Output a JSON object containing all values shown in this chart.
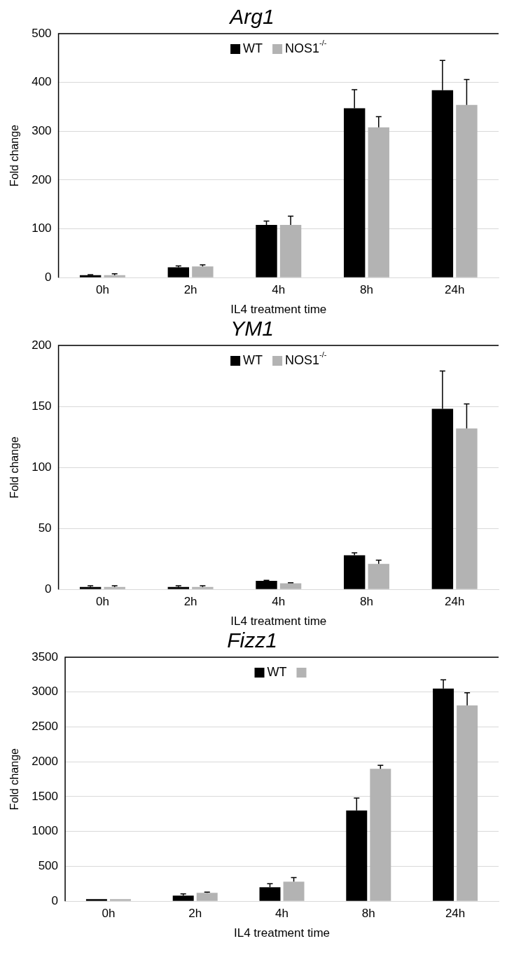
{
  "chart_data": [
    {
      "type": "bar",
      "title": "Arg1",
      "xlabel": "IL4 treatment time",
      "ylabel": "Fold change",
      "categories": [
        "0h",
        "2h",
        "4h",
        "8h",
        "24h"
      ],
      "ylim": [
        0,
        500
      ],
      "yticks": [
        0,
        100,
        200,
        300,
        400,
        500
      ],
      "grid": "y",
      "legend": "top",
      "series": [
        {
          "name": "WT",
          "color": "#000000",
          "values": [
            5,
            21,
            108,
            347,
            384
          ],
          "errors": [
            [
              5,
              6
            ],
            [
              21,
              24
            ],
            [
              108,
              116
            ],
            [
              347,
              385
            ],
            [
              384,
              445
            ]
          ]
        },
        {
          "name": "NOS1$^{-/-}$",
          "color": "#b3b3b3",
          "values": [
            5,
            23,
            108,
            308,
            354
          ],
          "errors": [
            [
              5,
              8
            ],
            [
              23,
              26
            ],
            [
              108,
              126
            ],
            [
              308,
              330
            ],
            [
              354,
              406
            ]
          ]
        }
      ]
    },
    {
      "type": "bar",
      "title": "YM1",
      "xlabel": "IL4 treatment time",
      "ylabel": "Fold change",
      "categories": [
        "0h",
        "2h",
        "4h",
        "8h",
        "24h"
      ],
      "ylim": [
        0,
        200
      ],
      "yticks": [
        0,
        50,
        100,
        150,
        200
      ],
      "grid": "y",
      "legend": "top",
      "series": [
        {
          "name": "WT",
          "color": "#000000",
          "values": [
            2,
            2,
            7,
            28,
            148
          ],
          "errors": [
            [
              2,
              3
            ],
            [
              2,
              3
            ],
            [
              7,
              7.5
            ],
            [
              28,
              30
            ],
            [
              148,
              179
            ]
          ]
        },
        {
          "name": "NOS1$^{-/-}$",
          "color": "#b3b3b3",
          "values": [
            2,
            2,
            5,
            21,
            132
          ],
          "errors": [
            [
              2,
              3
            ],
            [
              2,
              3
            ],
            [
              5,
              5.5
            ],
            [
              21,
              24
            ],
            [
              132,
              152
            ]
          ]
        }
      ]
    },
    {
      "type": "bar",
      "title": "Fizz1",
      "xlabel": "IL4 treatment time",
      "ylabel": "Fold change",
      "categories": [
        "0h",
        "2h",
        "4h",
        "8h",
        "24h"
      ],
      "ylim": [
        0,
        3500
      ],
      "yticks": [
        0,
        500,
        1000,
        1500,
        2000,
        2500,
        3000,
        3500
      ],
      "grid": "y",
      "legend": "top",
      "series": [
        {
          "name": "WT",
          "color": "#000000",
          "values": [
            30,
            80,
            200,
            1300,
            3050
          ],
          "errors": [
            null,
            [
              80,
              105
            ],
            [
              200,
              250
            ],
            [
              1300,
              1480
            ],
            [
              3050,
              3175
            ]
          ]
        },
        {
          "color": "#b3b3b3",
          "values": [
            30,
            120,
            280,
            1900,
            2810
          ],
          "errors": [
            null,
            [
              120,
              130
            ],
            [
              280,
              340
            ],
            [
              1900,
              1950
            ],
            [
              2810,
              2990
            ]
          ]
        }
      ]
    }
  ]
}
